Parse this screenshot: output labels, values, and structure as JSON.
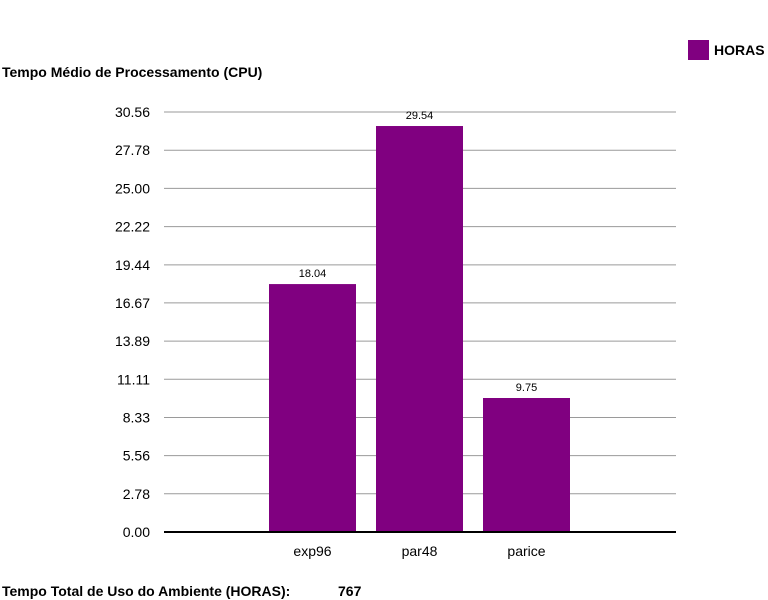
{
  "chart_data": {
    "type": "bar",
    "title": "Tempo Médio de Processamento (CPU)",
    "categories": [
      "exp96",
      "par48",
      "parice"
    ],
    "series": [
      {
        "name": "HORAS",
        "values": [
          18.04,
          29.54,
          9.75
        ],
        "color": "#800080"
      }
    ],
    "ylim": [
      0,
      30.56
    ],
    "yticks": [
      "0.00",
      "2.78",
      "5.56",
      "8.33",
      "11.11",
      "13.89",
      "16.67",
      "19.44",
      "22.22",
      "25.00",
      "27.78",
      "30.56"
    ],
    "grid": true,
    "legend": "top-right"
  },
  "footer": {
    "label": "Tempo Total de Uso do Ambiente (HORAS):",
    "value": "767"
  }
}
